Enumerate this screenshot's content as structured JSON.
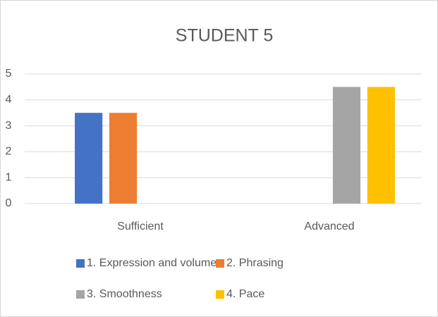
{
  "chart_data": {
    "type": "bar",
    "title": "STUDENT 5",
    "categories": [
      "Sufficient",
      "Advanced"
    ],
    "series": [
      {
        "name": "1. Expression and volume",
        "color": "#4472c4",
        "values": [
          3.5,
          null
        ]
      },
      {
        "name": "2. Phrasing",
        "color": "#ed7d31",
        "values": [
          3.5,
          null
        ]
      },
      {
        "name": "3. Smoothness",
        "color": "#a5a5a5",
        "values": [
          null,
          4.5
        ]
      },
      {
        "name": "4. Pace",
        "color": "#ffc000",
        "values": [
          null,
          4.5
        ]
      }
    ],
    "ylim": [
      0,
      5
    ],
    "yticks": [
      0,
      1,
      2,
      3,
      4,
      5
    ],
    "grid": true,
    "legend": "bottom"
  }
}
